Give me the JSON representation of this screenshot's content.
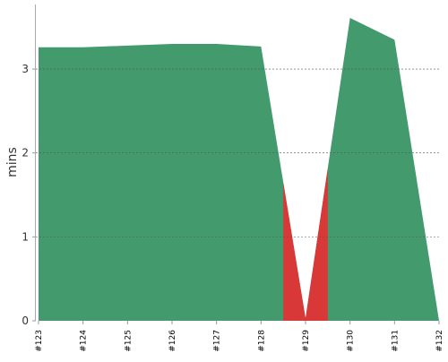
{
  "chart_data": {
    "type": "area",
    "y_label": "mins",
    "categories": [
      "#123",
      "#124",
      "#125",
      "#126",
      "#127",
      "#128",
      "#129",
      "#130",
      "#131",
      "#132"
    ],
    "series": [
      {
        "color": "#439a6d",
        "values": [
          3.26,
          3.26,
          3.28,
          3.3,
          3.3,
          3.27,
          0,
          3.61,
          3.35,
          0
        ]
      },
      {
        "color": "#d93838",
        "values": [
          0,
          0,
          0,
          0,
          0,
          0,
          0.03,
          0,
          0,
          0
        ]
      }
    ],
    "ylim": [
      0,
      3.77
    ],
    "yticks": [
      0,
      1,
      2,
      3
    ],
    "grid": true
  }
}
